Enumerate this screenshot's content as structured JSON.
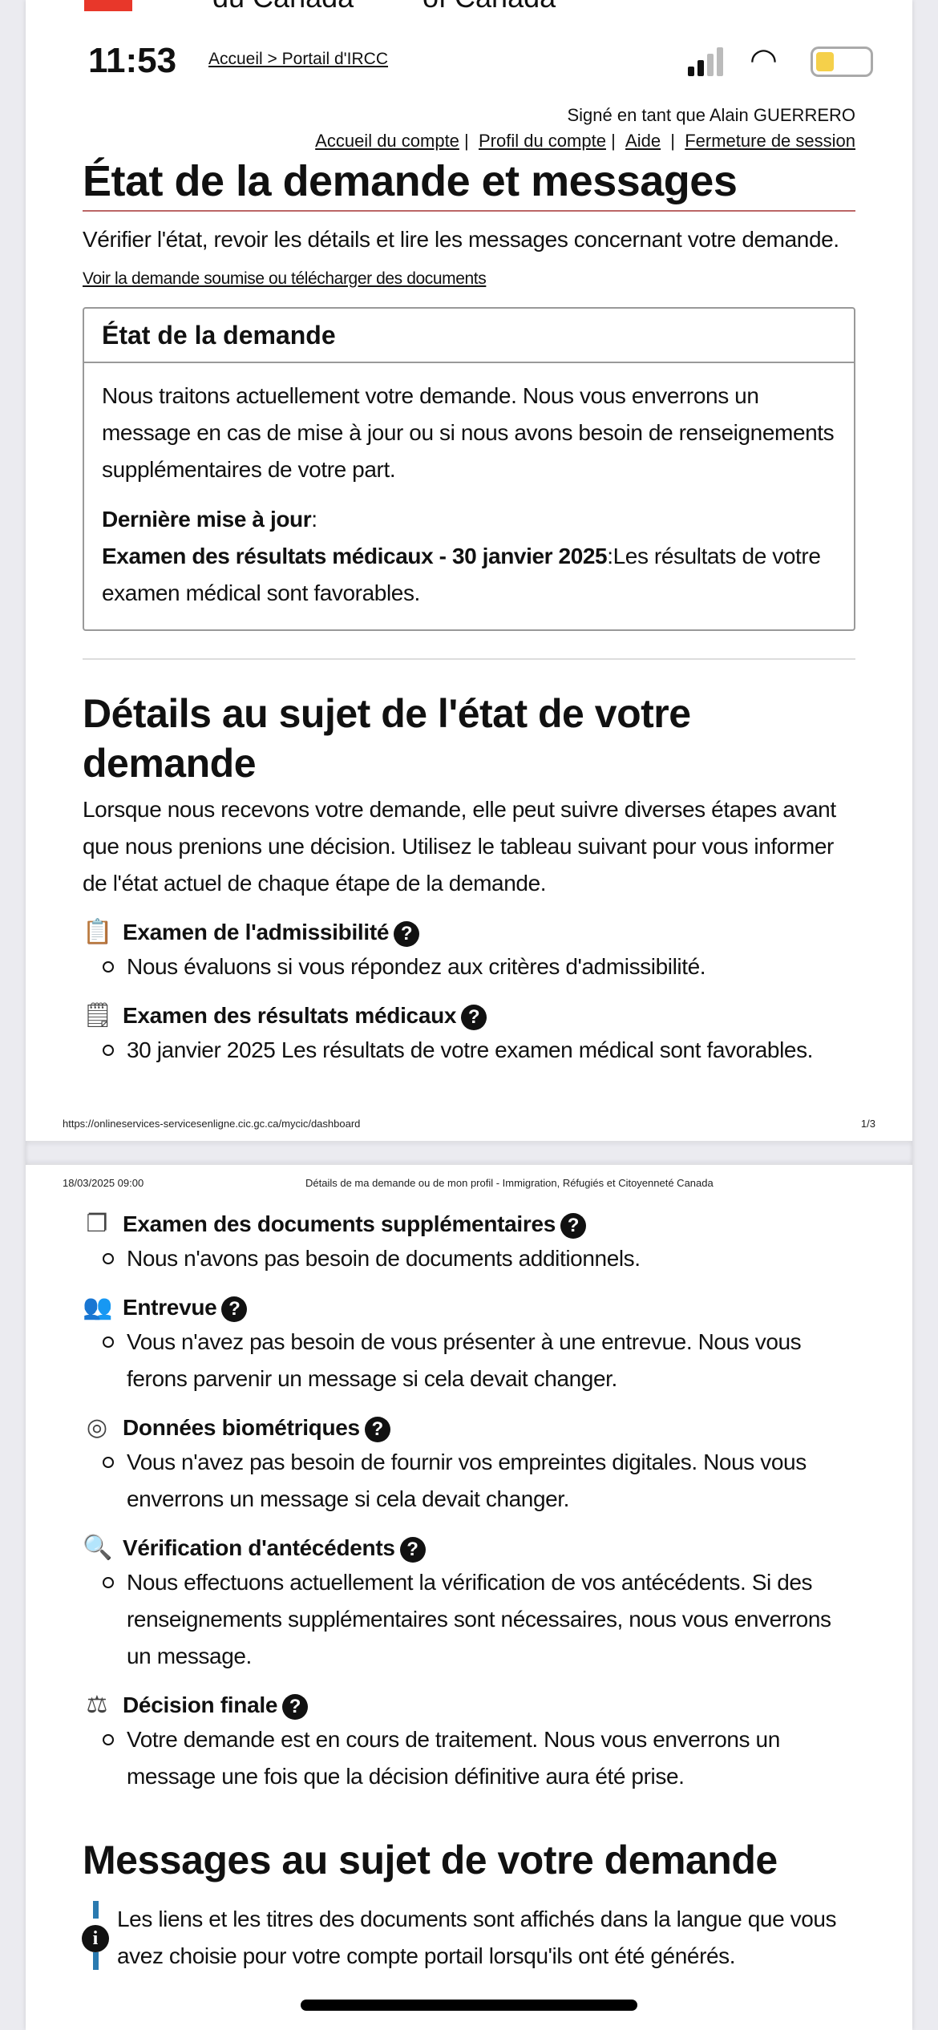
{
  "header": {
    "logo_fr": "du Canada",
    "logo_en": "of Canada",
    "breadcrumb": "Accueil > Portail d'IRCC",
    "time": "11:53"
  },
  "account": {
    "signed_in": "Signé en tant que Alain GUERRERO",
    "links": [
      "Accueil du compte",
      "Profil du compte",
      "Aide",
      "Fermeture de session"
    ]
  },
  "title": "État de la demande et messages",
  "intro": "Vérifier l'état, revoir les détails et lire les messages concernant votre demande.",
  "intro_link": "Voir la demande soumise ou télécharger des documents",
  "status_box": {
    "title": "État de la demande",
    "body": "Nous traitons actuellement votre demande. Nous vous enverrons un message en cas de mise à jour ou si nous avons besoin de renseignements supplémentaires de votre part.",
    "last_update_label": "Dernière mise à jour",
    "last_update_title": "Examen des résultats médicaux - 30 janvier 2025",
    "last_update_text": "Les résultats de votre examen médical sont favorables."
  },
  "details": {
    "title": "Détails au sujet de l'état de votre demande",
    "intro": "Lorsque nous recevons votre demande, elle peut suivre diverses étapes avant que nous prenions une décision. Utilisez le tableau suivant pour vous informer de l'état actuel de chaque étape de la demande.",
    "items": [
      {
        "icon": "clipboard-search-icon",
        "title": "Examen de l'admissibilité",
        "text": "Nous évaluons si vous répondez aux critères d'admissibilité."
      },
      {
        "icon": "medical-record-icon",
        "title": "Examen des résultats médicaux",
        "text": "30 janvier 2025 Les résultats de votre examen médical sont favorables."
      },
      {
        "icon": "documents-icon",
        "title": "Examen des documents supplémentaires",
        "text": "Nous n'avons pas besoin de documents additionnels."
      },
      {
        "icon": "interview-icon",
        "title": "Entrevue",
        "text": "Vous n'avez pas besoin de vous présenter à une entrevue. Nous vous ferons parvenir un message si cela devait changer."
      },
      {
        "icon": "fingerprint-icon",
        "title": "Données biométriques",
        "text": "Vous n'avez pas besoin de fournir vos empreintes digitales. Nous vous enverrons un message si cela devait changer."
      },
      {
        "icon": "background-check-icon",
        "title": "Vérification d'antécédents",
        "text": "Nous effectuons actuellement la vérification de vos antécédents. Si des renseignements supplémentaires sont nécessaires, nous vous enverrons un message."
      },
      {
        "icon": "scales-icon",
        "title": "Décision finale",
        "text": "Votre demande est en cours de traitement. Nous vous enverrons un message une fois que la décision définitive aura été prise."
      }
    ]
  },
  "print": {
    "url": "https://onlineservices-servicesenligne.cic.gc.ca/mycic/dashboard",
    "page": "1/3",
    "date": "18/03/2025 09:00",
    "doc_title": "Détails de ma demande ou de mon profil - Immigration, Réfugiés et Citoyenneté Canada"
  },
  "messages": {
    "title": "Messages au sujet de votre demande",
    "info": "Les liens et les titres des documents sont affichés dans la langue que vous avez choisie pour votre compte portail lorsqu'ils ont été générés."
  }
}
